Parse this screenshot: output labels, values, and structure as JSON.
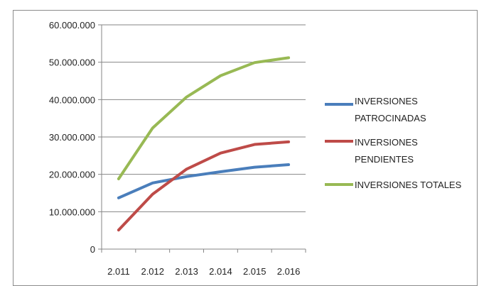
{
  "chart_data": {
    "type": "line",
    "title": "",
    "xlabel": "",
    "ylabel": "",
    "categories": [
      "2.011",
      "2.012",
      "2.013",
      "2.014",
      "2.015",
      "2.016"
    ],
    "ylim": [
      0,
      60000000
    ],
    "y_ticks": [
      {
        "value": 0,
        "label": "0"
      },
      {
        "value": 10000000,
        "label": "10.000.000"
      },
      {
        "value": 20000000,
        "label": "20.000.000"
      },
      {
        "value": 30000000,
        "label": "30.000.000"
      },
      {
        "value": 40000000,
        "label": "40.000.000"
      },
      {
        "value": 50000000,
        "label": "50.000.000"
      },
      {
        "value": 60000000,
        "label": "60.000.000"
      }
    ],
    "grid": true,
    "legend_position": "right",
    "series": [
      {
        "name": "INVERSIONES PATROCINADAS",
        "legend_lines": [
          "INVERSIONES",
          "PATROCINADAS"
        ],
        "color": "#4a7ebb",
        "values": [
          13700000,
          17700000,
          19400000,
          20700000,
          21900000,
          22600000
        ]
      },
      {
        "name": "INVERSIONES PENDIENTES",
        "legend_lines": [
          "INVERSIONES",
          "PENDIENTES"
        ],
        "color": "#be4b48",
        "values": [
          5100000,
          14700000,
          21400000,
          25700000,
          28000000,
          28700000
        ]
      },
      {
        "name": "INVERSIONES TOTALES",
        "legend_lines": [
          "INVERSIONES TOTALES"
        ],
        "color": "#98b954",
        "values": [
          18800000,
          32400000,
          40700000,
          46400000,
          49900000,
          51200000
        ]
      }
    ]
  }
}
